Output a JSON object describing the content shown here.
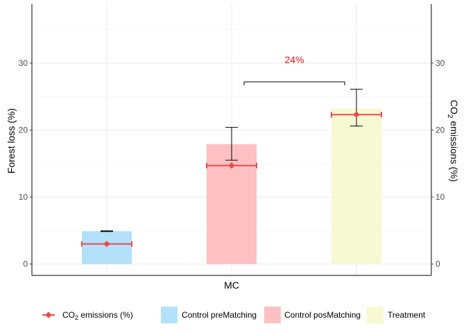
{
  "chart_data": {
    "type": "bar",
    "categories": [
      "MC"
    ],
    "xlabel": "MC",
    "ylabel": "Forest loss (%)",
    "y2label": "CO2 emissions (%)",
    "y2label_parts": {
      "pre": "CO",
      "sub": "2",
      "post": " emissions (%)"
    },
    "ylim": [
      -1.7,
      38.8
    ],
    "yticks": [
      0,
      10,
      20,
      30
    ],
    "grid": true,
    "legend_position": "bottom",
    "bar_series": [
      {
        "name": "Control preMatching",
        "color": "#b3e0fb",
        "value": 4.9,
        "error_upper": 4.9,
        "error_lower": 4.9
      },
      {
        "name": "Control posMatching",
        "color": "#fec0c0",
        "value": 17.9,
        "error_upper": 20.4,
        "error_lower": 15.5
      },
      {
        "name": "Treatment",
        "color": "#f8f8d2",
        "value": 23.2,
        "error_upper": 26.1,
        "error_lower": 20.6
      }
    ],
    "point_series": {
      "name": "CO2 emissions (%)",
      "name_parts": {
        "pre": "CO",
        "sub": "2",
        "post": " emissions (%)"
      },
      "color": "#f0484a",
      "values": [
        3.0,
        14.7,
        22.3
      ],
      "error_lower": [
        3.0,
        14.7,
        22.3
      ],
      "error_upper": [
        3.0,
        14.7,
        22.3
      ]
    },
    "annotation": {
      "text": "24%",
      "color": "#e8141c",
      "from_bar": 1,
      "to_bar": 2,
      "bracket_y": 27.2
    }
  }
}
